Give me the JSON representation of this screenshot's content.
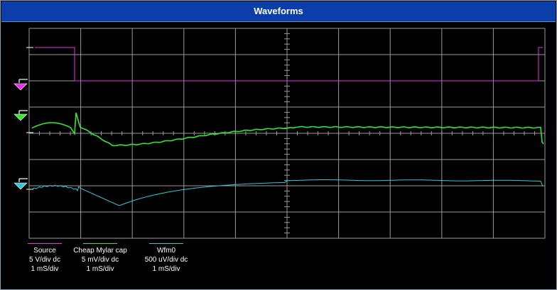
{
  "window": {
    "title": "Waveforms"
  },
  "colors": {
    "source": "#e632e6",
    "mylar": "#33e633",
    "wfm0": "#33c8d8",
    "grid": "#9a9a9a"
  },
  "channels": [
    {
      "name": "Source",
      "vdiv": "5 V/div dc",
      "tdiv": "1 mS/div",
      "icon": "magenta-down-arrow-icon"
    },
    {
      "name": "Cheap Mylar cap",
      "vdiv": "5 mV/div dc",
      "tdiv": "1 mS/div",
      "icon": "green-down-arrow-icon"
    },
    {
      "name": "Wfm0",
      "vdiv": "500 uV/div dc",
      "tdiv": "1 mS/div",
      "icon": "cyan-left-arrow-icon"
    }
  ]
}
